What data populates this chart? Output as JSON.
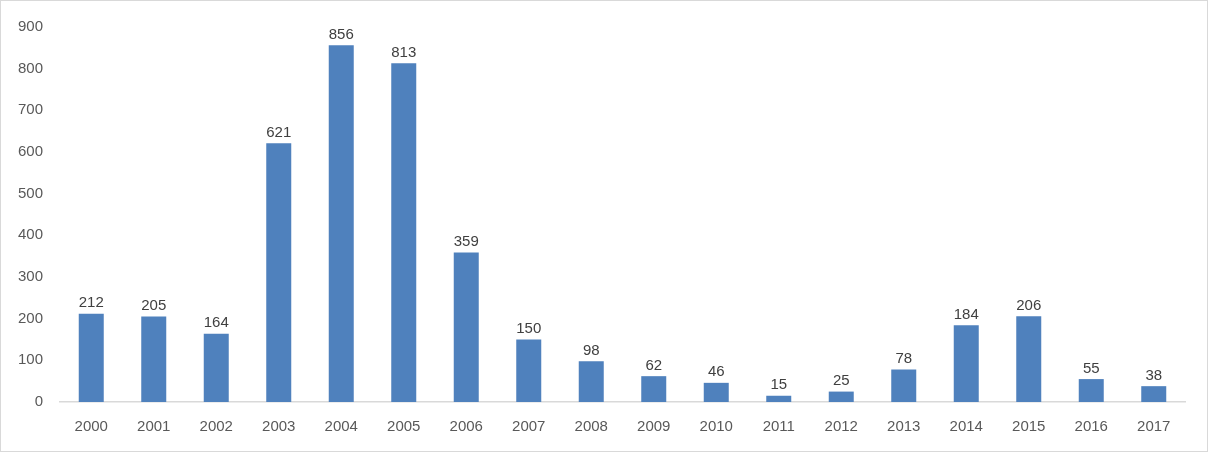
{
  "chart_data": {
    "type": "bar",
    "categories": [
      "2000",
      "2001",
      "2002",
      "2003",
      "2004",
      "2005",
      "2006",
      "2007",
      "2008",
      "2009",
      "2010",
      "2011",
      "2012",
      "2013",
      "2014",
      "2015",
      "2016",
      "2017"
    ],
    "values": [
      212,
      205,
      164,
      621,
      856,
      813,
      359,
      150,
      98,
      62,
      46,
      15,
      25,
      78,
      184,
      206,
      55,
      38
    ],
    "color": "#4f81bd",
    "ylim": [
      0,
      900
    ],
    "yticks": [
      0,
      100,
      200,
      300,
      400,
      500,
      600,
      700,
      800,
      900
    ],
    "data_labels": true,
    "grid": false,
    "legend": false
  }
}
